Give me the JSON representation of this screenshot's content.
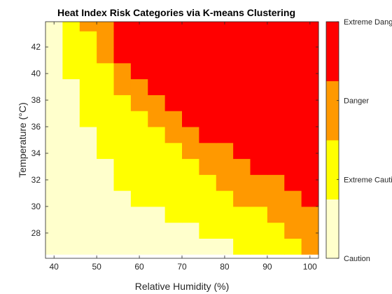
{
  "chart_data": {
    "type": "heatmap",
    "title": "Heat Index Risk Categories via K-means Clustering",
    "xlabel": "Relative Humidity (%)",
    "ylabel": "Temperature (°C)",
    "x_ticks": [
      40,
      50,
      60,
      70,
      80,
      90,
      100
    ],
    "y_ticks": [
      28,
      30,
      32,
      34,
      36,
      38,
      40,
      42
    ],
    "x_range": [
      38,
      102
    ],
    "y_range": [
      26.1,
      43.9
    ],
    "x_centers": [
      40,
      44,
      48,
      52,
      56,
      60,
      64,
      68,
      72,
      76,
      80,
      84,
      88,
      92,
      96,
      100
    ],
    "y_centers": [
      27,
      28.2,
      29.4,
      30.6,
      31.8,
      33,
      34.2,
      35.4,
      36.6,
      37.8,
      39,
      40.2,
      41.4,
      42.6,
      43.8
    ],
    "colorbar": {
      "labels": [
        "Caution",
        "Extreme Caution",
        "Danger",
        "Extreme Danger"
      ],
      "colors": [
        "#ffffcc",
        "#ffff00",
        "#ff9900",
        "#ff0000"
      ]
    },
    "cells": [
      [
        0,
        0,
        0,
        0,
        0,
        0,
        0,
        0,
        0,
        0,
        0,
        1,
        1,
        1,
        1,
        2
      ],
      [
        0,
        0,
        0,
        0,
        0,
        0,
        0,
        0,
        0,
        1,
        1,
        1,
        1,
        1,
        2,
        2
      ],
      [
        0,
        0,
        0,
        0,
        0,
        0,
        0,
        1,
        1,
        1,
        1,
        1,
        1,
        2,
        2,
        2
      ],
      [
        0,
        0,
        0,
        0,
        0,
        1,
        1,
        1,
        1,
        1,
        1,
        2,
        2,
        2,
        2,
        3
      ],
      [
        0,
        0,
        0,
        0,
        1,
        1,
        1,
        1,
        1,
        1,
        2,
        2,
        2,
        2,
        3,
        3
      ],
      [
        0,
        0,
        0,
        0,
        1,
        1,
        1,
        1,
        1,
        2,
        2,
        2,
        3,
        3,
        3,
        3
      ],
      [
        0,
        0,
        0,
        1,
        1,
        1,
        1,
        1,
        2,
        2,
        2,
        3,
        3,
        3,
        3,
        3
      ],
      [
        0,
        0,
        0,
        1,
        1,
        1,
        1,
        2,
        2,
        3,
        3,
        3,
        3,
        3,
        3,
        3
      ],
      [
        0,
        0,
        1,
        1,
        1,
        1,
        2,
        2,
        3,
        3,
        3,
        3,
        3,
        3,
        3,
        3
      ],
      [
        0,
        0,
        1,
        1,
        1,
        2,
        2,
        3,
        3,
        3,
        3,
        3,
        3,
        3,
        3,
        3
      ],
      [
        0,
        0,
        1,
        1,
        2,
        2,
        3,
        3,
        3,
        3,
        3,
        3,
        3,
        3,
        3,
        3
      ],
      [
        0,
        1,
        1,
        1,
        2,
        3,
        3,
        3,
        3,
        3,
        3,
        3,
        3,
        3,
        3,
        3
      ],
      [
        0,
        1,
        1,
        2,
        3,
        3,
        3,
        3,
        3,
        3,
        3,
        3,
        3,
        3,
        3,
        3
      ],
      [
        0,
        1,
        1,
        2,
        3,
        3,
        3,
        3,
        3,
        3,
        3,
        3,
        3,
        3,
        3,
        3
      ],
      [
        0,
        1,
        2,
        2,
        3,
        3,
        3,
        3,
        3,
        3,
        3,
        3,
        3,
        3,
        3,
        3
      ]
    ]
  }
}
